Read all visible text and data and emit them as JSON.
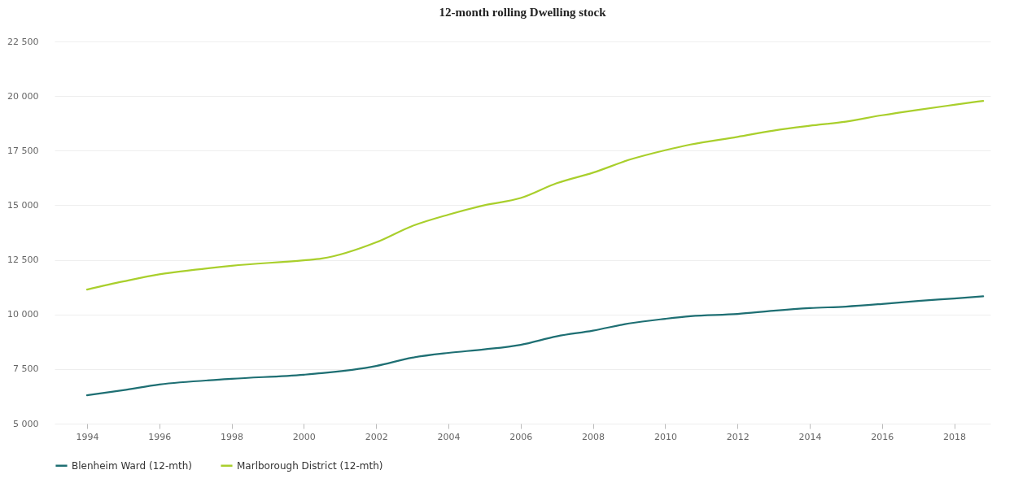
{
  "chart_data": {
    "type": "line",
    "title": "12-month rolling Dwelling stock",
    "xlim": [
      1993.1,
      2019
    ],
    "xticks": [
      1994,
      1996,
      1998,
      2000,
      2002,
      2004,
      2006,
      2008,
      2010,
      2012,
      2014,
      2016,
      2018
    ],
    "ylim": [
      5000,
      22500
    ],
    "yticks": [
      {
        "value": 5000,
        "label": "5 000"
      },
      {
        "value": 7500,
        "label": "7 500"
      },
      {
        "value": 10000,
        "label": "10 000"
      },
      {
        "value": 12500,
        "label": "12 500"
      },
      {
        "value": 15000,
        "label": "15 000"
      },
      {
        "value": 17500,
        "label": "17 500"
      },
      {
        "value": 20000,
        "label": "20 000"
      },
      {
        "value": 22500,
        "label": "22 500"
      }
    ],
    "grid": "y",
    "legend": "bottom",
    "marker": "none",
    "line_style": "solid",
    "series": [
      {
        "name": "Blenheim Ward (12-mth)",
        "color": "#1e6f73",
        "x": [
          1994,
          1995,
          1996,
          1998,
          2000,
          2000.5,
          2002,
          2003,
          2004,
          2005,
          2006,
          2007,
          2008,
          2009,
          2010,
          2010.7,
          2012,
          2013,
          2014,
          2015,
          2016,
          2017,
          2018,
          2018.8
        ],
        "values": [
          6300,
          6530,
          6790,
          7050,
          7240,
          7310,
          7640,
          8020,
          8240,
          8400,
          8610,
          9000,
          9260,
          9590,
          9800,
          9920,
          10020,
          10170,
          10290,
          10360,
          10480,
          10620,
          10730,
          10830
        ]
      },
      {
        "name": "Marlborough District (12-mth)",
        "color": "#a9cf2c",
        "x": [
          1994,
          1995,
          1996,
          1997,
          1998,
          2000,
          2000.5,
          2002,
          2003,
          2004,
          2005,
          2006,
          2007,
          2008,
          2009,
          2010,
          2010.7,
          2012,
          2013,
          2014,
          2015,
          2016,
          2017,
          2018,
          2018.8
        ],
        "values": [
          11140,
          11510,
          11840,
          12050,
          12230,
          12480,
          12560,
          13300,
          14050,
          14570,
          15000,
          15330,
          16010,
          16490,
          17080,
          17520,
          17780,
          18130,
          18420,
          18640,
          18830,
          19120,
          19370,
          19600,
          19780
        ]
      }
    ]
  }
}
